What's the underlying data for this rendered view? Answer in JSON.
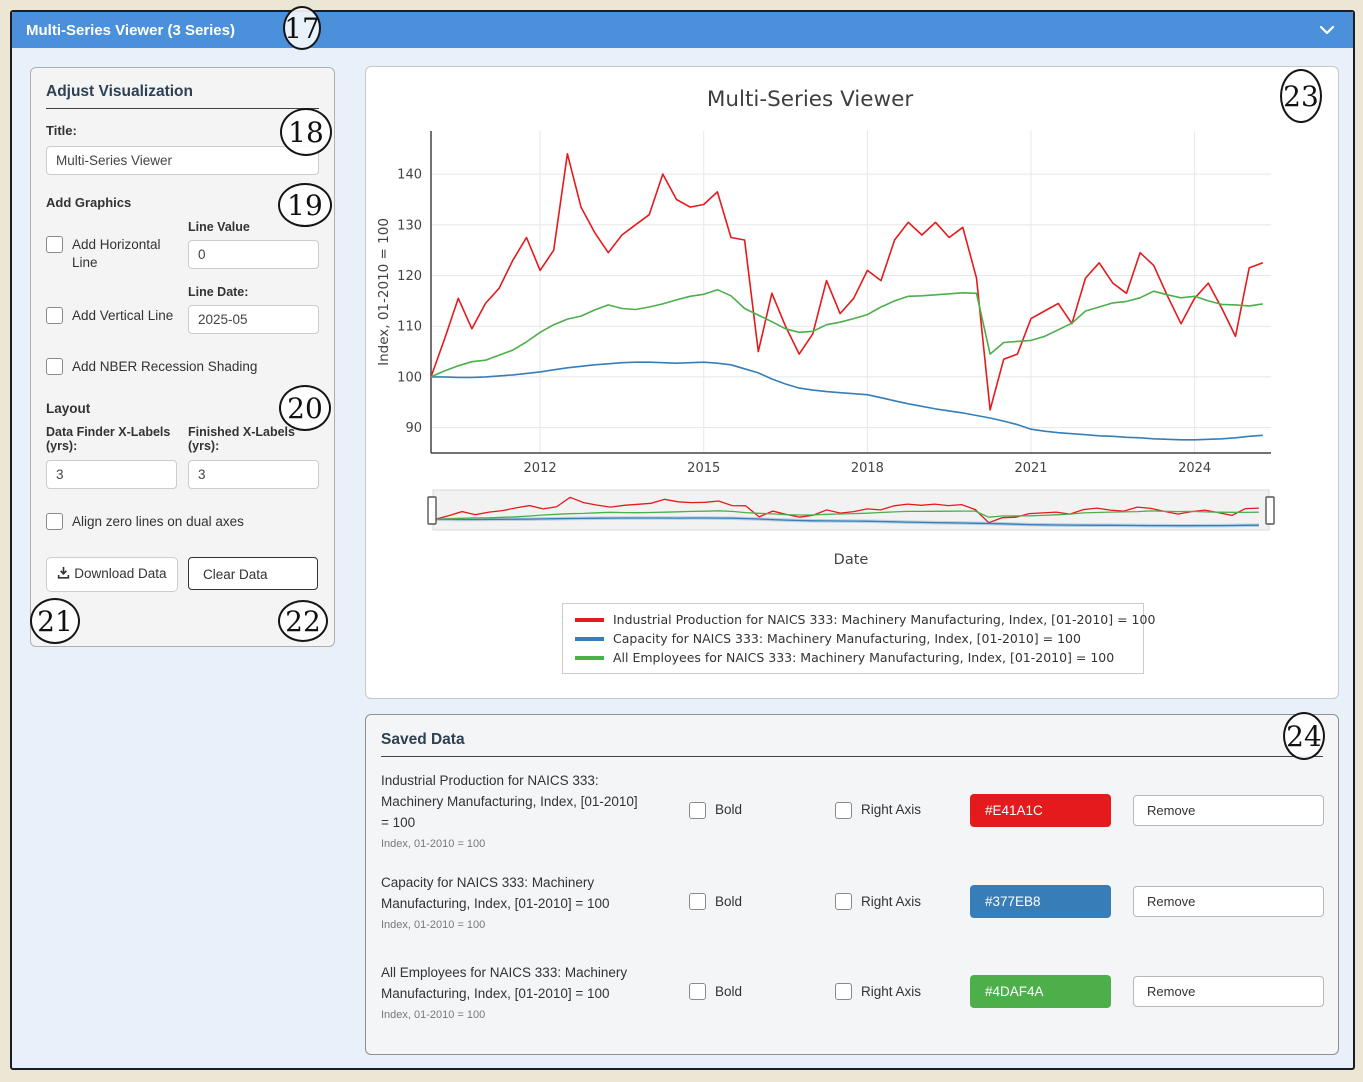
{
  "header": {
    "title": "Multi-Series Viewer (3 Series)"
  },
  "icons": {
    "header_chevron": "chevron-down",
    "download": "download-tray-arrow"
  },
  "sidebar": {
    "title": "Adjust Visualization",
    "title_label": "Title:",
    "title_value": "Multi-Series Viewer",
    "add_graphics_label": "Add Graphics",
    "add_horizontal_line_label": "Add Horizontal Line",
    "line_value_label": "Line Value",
    "line_value": "0",
    "add_vertical_line_label": "Add Vertical Line",
    "line_date_label": "Line Date:",
    "line_date": "2025-05",
    "nber_label": "Add NBER Recession Shading",
    "layout_label": "Layout",
    "data_finder_label": "Data Finder X-Labels (yrs):",
    "data_finder_value": "3",
    "finished_label": "Finished X-Labels (yrs):",
    "finished_value": "3",
    "align_zero_label": "Align zero lines on dual axes",
    "download_label": "Download Data",
    "clear_label": "Clear Data"
  },
  "chart_data": {
    "type": "line",
    "title": "Multi-Series Viewer",
    "xlabel": "Date",
    "ylabel": "Index, 01-2010 = 100",
    "x_ticks": [
      2012,
      2015,
      2018,
      2021,
      2024
    ],
    "y_ticks": [
      90,
      100,
      110,
      120,
      130,
      140
    ],
    "xlim": [
      2010,
      2025.4
    ],
    "ylim": [
      85,
      148.5
    ],
    "grid": true,
    "legend_position": "bottom",
    "rangeslider": true,
    "x": [
      2010.0,
      2010.25,
      2010.5,
      2010.75,
      2011.0,
      2011.25,
      2011.5,
      2011.75,
      2012.0,
      2012.25,
      2012.5,
      2012.75,
      2013.0,
      2013.25,
      2013.5,
      2013.75,
      2014.0,
      2014.25,
      2014.5,
      2014.75,
      2015.0,
      2015.25,
      2015.5,
      2015.75,
      2016.0,
      2016.25,
      2016.5,
      2016.75,
      2017.0,
      2017.25,
      2017.5,
      2017.75,
      2018.0,
      2018.25,
      2018.5,
      2018.75,
      2019.0,
      2019.25,
      2019.5,
      2019.75,
      2020.0,
      2020.25,
      2020.5,
      2020.75,
      2021.0,
      2021.25,
      2021.5,
      2021.75,
      2022.0,
      2022.25,
      2022.5,
      2022.75,
      2023.0,
      2023.25,
      2023.5,
      2023.75,
      2024.0,
      2024.25,
      2024.5,
      2024.75,
      2025.0,
      2025.25
    ],
    "series": [
      {
        "name": "Industrial Production for NAICS 333: Machinery Manufacturing, Index, [01-2010] = 100",
        "color": "#E41A1C",
        "values": [
          100,
          107.5,
          115.5,
          109.5,
          114.5,
          117.5,
          123,
          127.5,
          121,
          125,
          144,
          133.5,
          128.5,
          124.5,
          128,
          130,
          132,
          140,
          135,
          133.5,
          134,
          136.5,
          127.5,
          127,
          105,
          116.5,
          110,
          104.5,
          108.5,
          119,
          112.5,
          115.5,
          121,
          119,
          127,
          130.5,
          128,
          130.5,
          127.5,
          129.5,
          119.5,
          93.5,
          103.5,
          104.5,
          111.5,
          113,
          114.5,
          110.5,
          119.5,
          122.5,
          118.5,
          116.5,
          124.5,
          122,
          116,
          110.5,
          115.5,
          118.5,
          113.5,
          108,
          121.5,
          122.5
        ]
      },
      {
        "name": "Capacity for NAICS 333: Machinery Manufacturing, Index, [01-2010] = 100",
        "color": "#377EB8",
        "values": [
          100,
          100,
          99.9,
          99.9,
          100,
          100.2,
          100.4,
          100.7,
          101,
          101.4,
          101.8,
          102.1,
          102.4,
          102.6,
          102.8,
          102.9,
          102.9,
          102.8,
          102.7,
          102.8,
          102.9,
          102.7,
          102.4,
          101.6,
          100.8,
          99.6,
          98.6,
          97.8,
          97.4,
          97.1,
          96.9,
          96.7,
          96.5,
          95.9,
          95.3,
          94.7,
          94.2,
          93.7,
          93.3,
          92.9,
          92.4,
          91.9,
          91.3,
          90.6,
          89.7,
          89.3,
          89,
          88.8,
          88.6,
          88.4,
          88.3,
          88.1,
          88,
          87.8,
          87.7,
          87.6,
          87.6,
          87.7,
          87.8,
          88,
          88.3,
          88.5
        ]
      },
      {
        "name": "All Employees for NAICS 333: Machinery Manufacturing, Index, [01-2010] = 100",
        "color": "#4DAF4A",
        "values": [
          100,
          101.2,
          102.2,
          103,
          103.3,
          104.3,
          105.3,
          106.9,
          108.8,
          110.3,
          111.4,
          112,
          113.2,
          114.2,
          113.5,
          113.3,
          113.8,
          114.4,
          115.2,
          115.9,
          116.3,
          117.2,
          116,
          113.5,
          112.2,
          110.9,
          109.5,
          108.8,
          109,
          110.3,
          110.8,
          111.5,
          112.3,
          113.8,
          115,
          115.9,
          116,
          116.2,
          116.4,
          116.6,
          116.5,
          104.5,
          106.8,
          107,
          107.2,
          108,
          109.3,
          110.6,
          113,
          113.8,
          114.6,
          114.9,
          115.6,
          116.9,
          116.2,
          115.6,
          115.9,
          115,
          114.3,
          114.2,
          114,
          114.4
        ]
      }
    ]
  },
  "saved_data": {
    "title": "Saved Data",
    "bold_label": "Bold",
    "right_axis_label": "Right Axis",
    "remove_label": "Remove",
    "rows": [
      {
        "name": "Industrial Production for NAICS 333: Machinery Manufacturing, Index, [01-2010] = 100",
        "subtitle": "Index, 01-2010 = 100",
        "color_hex": "#E41A1C"
      },
      {
        "name": "Capacity for NAICS 333: Machinery Manufacturing, Index, [01-2010] = 100",
        "subtitle": "Index, 01-2010 = 100",
        "color_hex": "#377EB8"
      },
      {
        "name": "All Employees for NAICS 333: Machinery Manufacturing, Index, [01-2010] = 100",
        "subtitle": "Index, 01-2010 = 100",
        "color_hex": "#4DAF4A"
      }
    ]
  },
  "annotations": [
    "17",
    "18",
    "19",
    "20",
    "21",
    "22",
    "23",
    "24"
  ]
}
